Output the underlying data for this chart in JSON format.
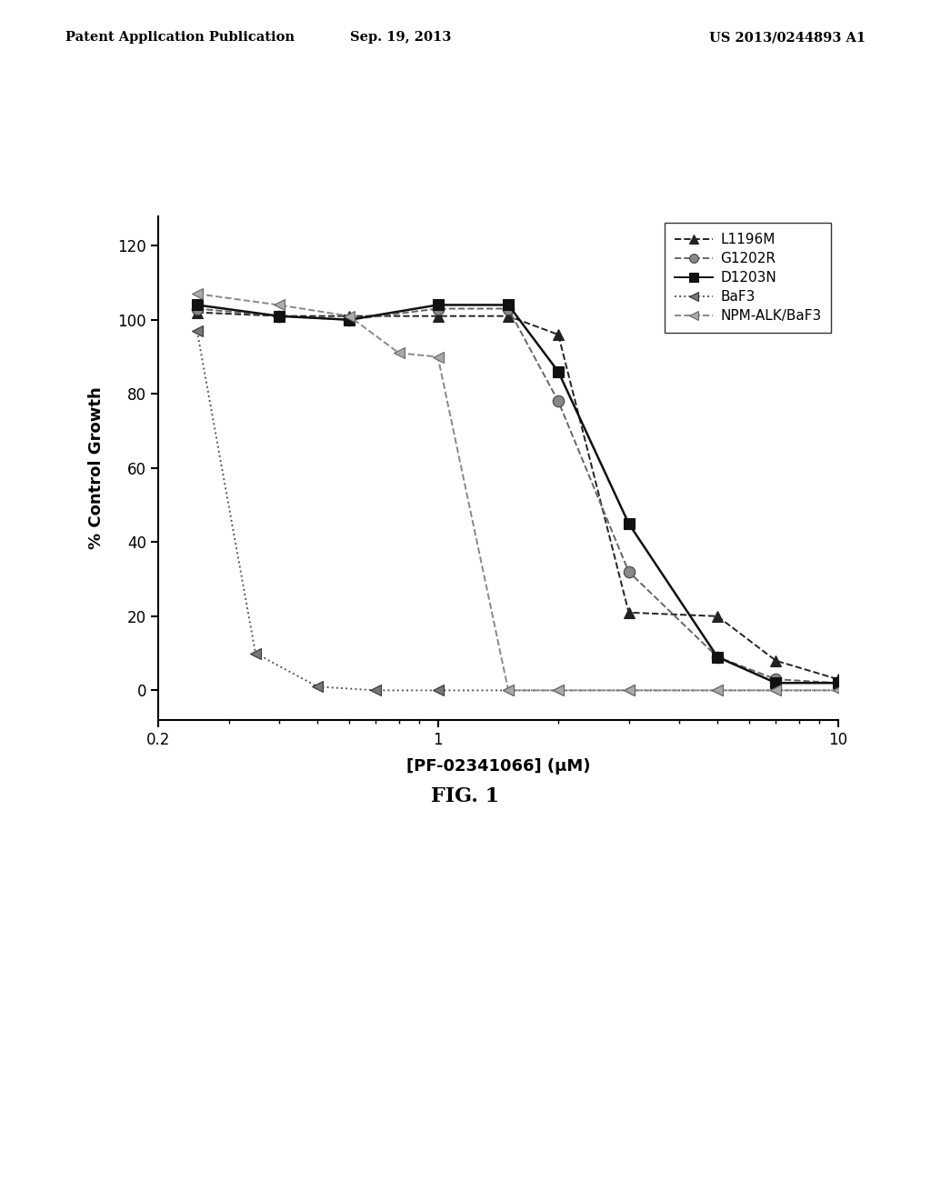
{
  "title": "FIG. 1",
  "xlabel": "[PF-02341066] (μM)",
  "ylabel": "% Control Growth",
  "header_left": "Patent Application Publication",
  "header_center": "Sep. 19, 2013",
  "header_right": "US 2013/0244893 A1",
  "xlim": [
    0.2,
    10
  ],
  "ylim": [
    -8,
    128
  ],
  "yticks": [
    0,
    20,
    40,
    60,
    80,
    100,
    120
  ],
  "series": {
    "L1196M": {
      "x": [
        0.25,
        0.4,
        0.6,
        1.0,
        1.5,
        2.0,
        3.0,
        5.0,
        7.0,
        10.0
      ],
      "y": [
        102,
        101,
        101,
        101,
        101,
        96,
        21,
        20,
        8,
        3
      ],
      "color": "#222222",
      "linestyle": "--",
      "marker": "^",
      "markersize": 8,
      "linewidth": 1.4,
      "markerfacecolor": "#222222",
      "markeredgecolor": "#222222"
    },
    "G1202R": {
      "x": [
        0.25,
        0.4,
        0.6,
        1.0,
        1.5,
        2.0,
        3.0,
        5.0,
        7.0,
        10.0
      ],
      "y": [
        103,
        101,
        100,
        103,
        103,
        78,
        32,
        9,
        3,
        2
      ],
      "color": "#666666",
      "linestyle": "--",
      "marker": "o",
      "markersize": 9,
      "linewidth": 1.4,
      "markerfacecolor": "#888888",
      "markeredgecolor": "#444444"
    },
    "D1203N": {
      "x": [
        0.25,
        0.4,
        0.6,
        1.0,
        1.5,
        2.0,
        3.0,
        5.0,
        7.0,
        10.0
      ],
      "y": [
        104,
        101,
        100,
        104,
        104,
        86,
        45,
        9,
        2,
        2
      ],
      "color": "#111111",
      "linestyle": "-",
      "marker": "s",
      "markersize": 8,
      "linewidth": 1.8,
      "markerfacecolor": "#111111",
      "markeredgecolor": "#111111"
    },
    "BaF3": {
      "x": [
        0.25,
        0.35,
        0.5,
        0.7,
        1.0,
        1.5,
        2.0,
        3.0,
        5.0,
        7.0,
        10.0
      ],
      "y": [
        97,
        10,
        1,
        0,
        0,
        0,
        0,
        0,
        0,
        0,
        0
      ],
      "color": "#555555",
      "linestyle": ":",
      "marker": "<",
      "markersize": 9,
      "linewidth": 1.4,
      "markerfacecolor": "#777777",
      "markeredgecolor": "#333333"
    },
    "NPM-ALK/BaF3": {
      "x": [
        0.25,
        0.4,
        0.6,
        0.8,
        1.0,
        1.5,
        2.0,
        3.0,
        5.0,
        7.0,
        10.0
      ],
      "y": [
        107,
        104,
        101,
        91,
        90,
        0,
        0,
        0,
        0,
        0,
        0
      ],
      "color": "#888888",
      "linestyle": "--",
      "marker": "<",
      "markersize": 9,
      "linewidth": 1.4,
      "markerfacecolor": "#aaaaaa",
      "markeredgecolor": "#666666"
    }
  }
}
